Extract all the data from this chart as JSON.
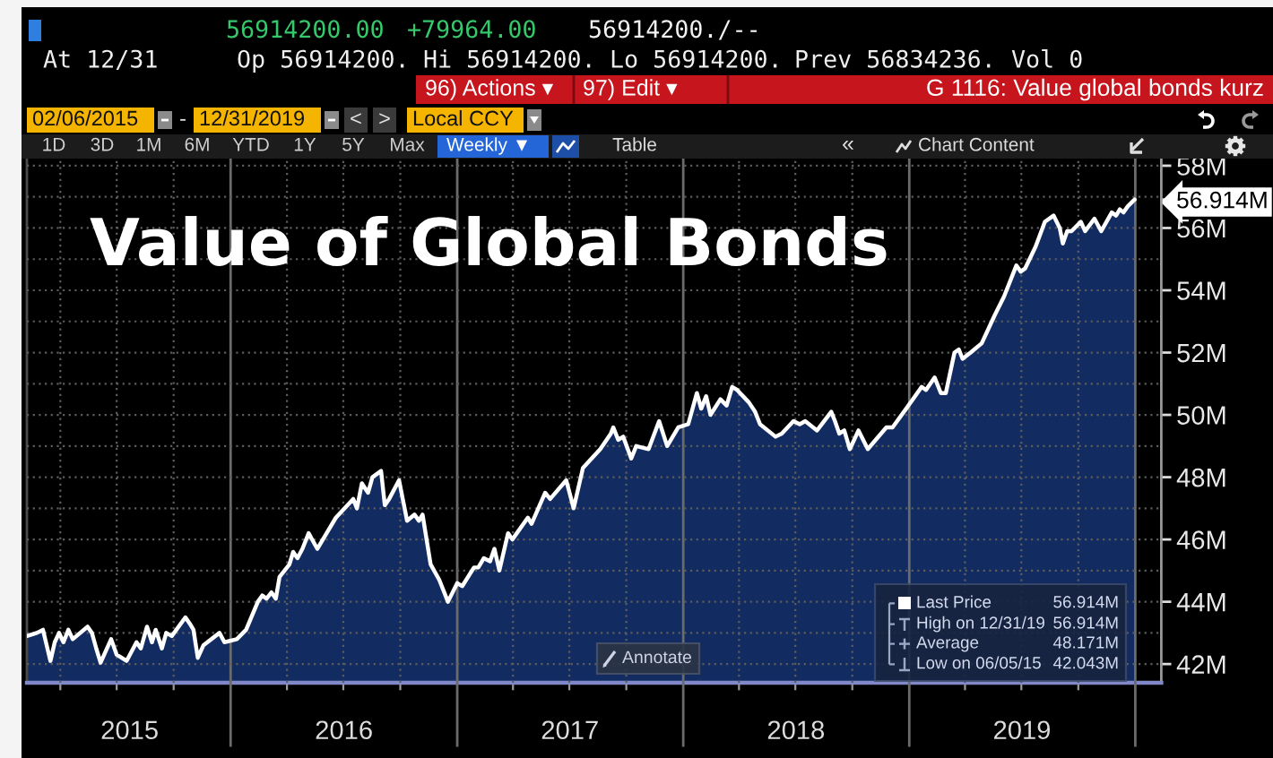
{
  "chart_data": {
    "type": "area",
    "title": "Value of Global Bonds",
    "x": [
      "2015-02-06",
      "2015-02-22",
      "2015-03-04",
      "2015-03-16",
      "2015-03-23",
      "2015-03-30",
      "2015-04-06",
      "2015-04-14",
      "2015-04-21",
      "2015-05-15",
      "2015-05-22",
      "2015-05-29",
      "2015-06-05",
      "2015-06-22",
      "2015-07-01",
      "2015-07-17",
      "2015-08-02",
      "2015-08-09",
      "2015-08-19",
      "2015-08-27",
      "2015-09-02",
      "2015-09-12",
      "2015-09-19",
      "2015-09-28",
      "2015-10-20",
      "2015-10-27",
      "2015-11-02",
      "2015-11-09",
      "2015-11-18",
      "2015-12-14",
      "2015-12-22",
      "2016-01-11",
      "2016-01-26",
      "2016-02-14",
      "2016-02-21",
      "2016-02-28",
      "2016-03-07",
      "2016-03-14",
      "2016-03-20",
      "2016-04-05",
      "2016-04-11",
      "2016-04-18",
      "2016-04-26",
      "2016-05-06",
      "2016-05-20",
      "2016-06-04",
      "2016-06-19",
      "2016-07-17",
      "2016-07-23",
      "2016-07-31",
      "2016-08-10",
      "2016-08-17",
      "2016-08-31",
      "2016-09-06",
      "2016-09-13",
      "2016-09-29",
      "2016-10-05",
      "2016-10-12",
      "2016-10-24",
      "2016-10-31",
      "2016-11-06",
      "2016-11-19",
      "2016-12-03",
      "2016-12-17",
      "2017-01-01",
      "2017-01-09",
      "2017-01-28",
      "2017-02-04",
      "2017-02-13",
      "2017-02-23",
      "2017-03-02",
      "2017-03-10",
      "2017-03-24",
      "2017-03-31",
      "2017-04-25",
      "2017-05-01",
      "2017-05-23",
      "2017-05-31",
      "2017-06-26",
      "2017-07-08",
      "2017-07-23",
      "2017-08-20",
      "2017-09-06",
      "2017-09-10",
      "2017-09-18",
      "2017-09-26",
      "2017-10-09",
      "2017-10-17",
      "2017-11-06",
      "2017-11-23",
      "2017-12-06",
      "2017-12-24",
      "2018-01-09",
      "2018-01-23",
      "2018-01-30",
      "2018-02-07",
      "2018-02-14",
      "2018-03-02",
      "2018-03-12",
      "2018-03-21",
      "2018-03-29",
      "2018-04-17",
      "2018-04-27",
      "2018-05-05",
      "2018-05-30",
      "2018-06-09",
      "2018-06-28",
      "2018-07-08",
      "2018-07-17",
      "2018-08-05",
      "2018-08-28",
      "2018-09-03",
      "2018-09-10",
      "2018-09-18",
      "2018-09-27",
      "2018-10-11",
      "2018-10-26",
      "2018-11-25",
      "2018-12-05",
      "2018-12-27",
      "2019-01-21",
      "2019-01-28",
      "2019-02-11",
      "2019-02-21",
      "2019-03-01",
      "2019-03-15",
      "2019-03-22",
      "2019-03-28",
      "2019-04-10",
      "2019-04-28",
      "2019-05-19",
      "2019-06-03",
      "2019-06-23",
      "2019-06-30",
      "2019-07-07",
      "2019-07-24",
      "2019-08-08",
      "2019-08-22",
      "2019-09-01",
      "2019-09-06",
      "2019-09-13",
      "2019-09-20",
      "2019-10-05",
      "2019-10-12",
      "2019-10-27",
      "2019-11-07",
      "2019-11-24",
      "2019-12-01",
      "2019-12-07",
      "2019-12-13",
      "2019-12-20",
      "2019-12-31"
    ],
    "series": [
      {
        "color": "#122c62",
        "values": [
          42.9,
          43.0,
          43.1,
          42.1,
          42.7,
          43.0,
          42.7,
          43.1,
          42.8,
          43.2,
          43.0,
          42.5,
          42.043,
          42.8,
          42.3,
          42.1,
          42.7,
          42.5,
          43.2,
          42.7,
          43.1,
          42.5,
          43.0,
          42.9,
          43.5,
          43.3,
          43.1,
          42.2,
          42.6,
          43.0,
          42.7,
          42.8,
          43.1,
          44.0,
          44.2,
          44.1,
          44.3,
          44.1,
          44.8,
          45.2,
          45.6,
          45.4,
          45.7,
          46.2,
          45.7,
          46.2,
          46.7,
          47.3,
          47.0,
          47.8,
          47.5,
          48.0,
          48.2,
          47.1,
          47.3,
          47.9,
          47.3,
          46.6,
          46.8,
          46.6,
          46.8,
          45.2,
          44.7,
          44.0,
          44.6,
          44.5,
          45.1,
          45.1,
          45.4,
          45.3,
          45.7,
          45.0,
          46.2,
          46.0,
          46.7,
          46.5,
          47.5,
          47.3,
          47.9,
          47.0,
          48.3,
          48.9,
          49.4,
          49.6,
          49.2,
          49.3,
          48.6,
          49.0,
          48.9,
          49.8,
          49.0,
          49.6,
          49.7,
          50.7,
          50.2,
          50.6,
          50.0,
          50.5,
          50.3,
          50.9,
          50.8,
          50.4,
          50.1,
          49.7,
          49.3,
          49.4,
          49.8,
          49.7,
          49.8,
          49.5,
          50.1,
          49.8,
          49.4,
          49.5,
          48.9,
          49.5,
          48.9,
          49.6,
          49.6,
          50.2,
          50.9,
          50.8,
          51.2,
          50.7,
          50.7,
          52.0,
          52.1,
          51.8,
          52.0,
          52.3,
          53.2,
          53.8,
          54.8,
          54.6,
          54.7,
          55.4,
          56.2,
          56.4,
          56.0,
          55.5,
          55.9,
          55.9,
          56.2,
          55.9,
          56.3,
          55.9,
          56.5,
          56.4,
          56.6,
          56.5,
          56.7,
          56.914
        ]
      }
    ],
    "xlim": [
      "2015-02-06",
      "2020-02-12"
    ],
    "xticks": [
      {
        "value": "2015-04-01",
        "label": null
      },
      {
        "value": "2015-07-01",
        "label": null
      },
      {
        "value": "2015-10-01",
        "label": null
      },
      {
        "value": "2016-01-01",
        "label": null
      },
      {
        "value": "2016-04-01",
        "label": null
      },
      {
        "value": "2016-07-01",
        "label": null
      },
      {
        "value": "2016-10-01",
        "label": null
      },
      {
        "value": "2017-01-01",
        "label": null
      },
      {
        "value": "2017-04-01",
        "label": null
      },
      {
        "value": "2017-07-01",
        "label": null
      },
      {
        "value": "2017-10-01",
        "label": null
      },
      {
        "value": "2018-01-01",
        "label": null
      },
      {
        "value": "2018-04-01",
        "label": null
      },
      {
        "value": "2018-07-01",
        "label": null
      },
      {
        "value": "2018-10-01",
        "label": null
      },
      {
        "value": "2019-01-01",
        "label": null
      },
      {
        "value": "2019-04-01",
        "label": null
      },
      {
        "value": "2019-07-01",
        "label": null
      },
      {
        "value": "2019-10-01",
        "label": null
      },
      {
        "value": "2020-01-01",
        "label": null
      },
      {
        "value": "2015-07-22",
        "label": "2015"
      },
      {
        "value": "2016-07-02",
        "label": "2016"
      },
      {
        "value": "2017-07-02",
        "label": "2017"
      },
      {
        "value": "2018-07-02",
        "label": "2018"
      },
      {
        "value": "2019-07-02",
        "label": "2019"
      }
    ],
    "ylim": [
      41.4,
      58.2
    ],
    "yticks": [
      {
        "value": 42,
        "label": "42M"
      },
      {
        "value": 43,
        "label": null
      },
      {
        "value": 44,
        "label": "44M"
      },
      {
        "value": 45,
        "label": null
      },
      {
        "value": 46,
        "label": "46M"
      },
      {
        "value": 47,
        "label": null
      },
      {
        "value": 48,
        "label": "48M"
      },
      {
        "value": 49,
        "label": null
      },
      {
        "value": 50,
        "label": "50M"
      },
      {
        "value": 51,
        "label": null
      },
      {
        "value": 52,
        "label": "52M"
      },
      {
        "value": 53,
        "label": null
      },
      {
        "value": 54,
        "label": "54M"
      },
      {
        "value": 55,
        "label": null
      },
      {
        "value": 56,
        "label": "56M"
      },
      {
        "value": 57,
        "label": null
      },
      {
        "value": 58,
        "label": "58M"
      },
      {
        "value": 56.914,
        "label": "56.914M"
      }
    ],
    "grid": true,
    "annotations": [
      "56914200.00",
      "+79964.00",
      "56914200./--",
      "At 12/31",
      "Op 56914200.",
      "Hi 56914200.",
      "Lo 56914200.",
      "Prev 56834236.",
      "Vol 0",
      "96) Actions ▾",
      "97) Edit ▾",
      "G 1116: Value global bonds kurz",
      "02/06/2015",
      "-",
      "12/31/2019",
      "<",
      ">",
      "Local CCY",
      "1D",
      "3D",
      "1M",
      "6M",
      "YTD",
      "1Y",
      "5Y",
      "Max",
      "Weekly ▼",
      "Table",
      "«",
      "Chart Content",
      "Annotate",
      "Last Price",
      "56.914M",
      "High on 12/31/19",
      "56.914M",
      "Average",
      "48.171M",
      "Low on 06/05/15",
      "42.043M"
    ]
  }
}
